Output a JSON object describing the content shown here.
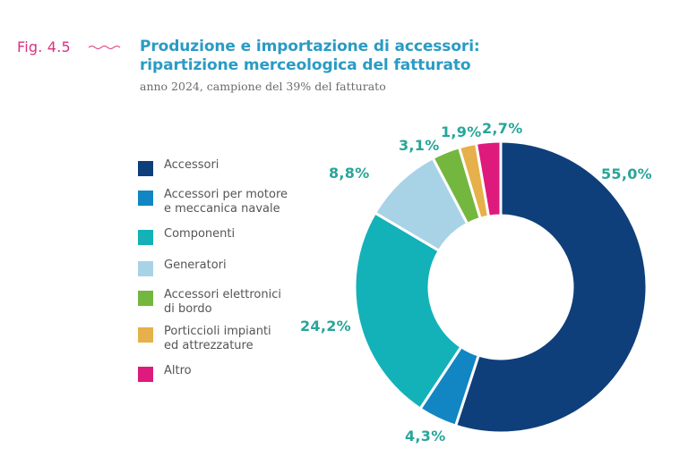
{
  "figure": {
    "number": "Fig. 4.5",
    "title_line1": "Produzione e importazione di accessori:",
    "title_line2": "ripartizione merceologica del fatturato",
    "subtitle": "anno 2024, campione del 39% del fatturato"
  },
  "legend": [
    {
      "label": "Accessori",
      "color": "#0f3f7a"
    },
    {
      "label": "Accessori per motore\ne meccanica navale",
      "color": "#1286c2"
    },
    {
      "label": "Componenti",
      "color": "#12b2b8"
    },
    {
      "label": "Generatori",
      "color": "#a8d3e6"
    },
    {
      "label": "Accessori elettronici\ndi bordo",
      "color": "#74b73f"
    },
    {
      "label": "Porticcioli impianti\ned attrezzature",
      "color": "#e6b04a"
    },
    {
      "label": "Altro",
      "color": "#de1a7c"
    }
  ],
  "labels": {
    "accessori": "55,0%",
    "motore": "4,3%",
    "componenti": "24,2%",
    "generatori": "8,8%",
    "elettronici": "3,1%",
    "porticcioli": "1,9%",
    "altro": "2,7%"
  },
  "colors": {
    "label_text": "#28a59a",
    "fig_number": "#d6337f",
    "title": "#2a9bc4"
  },
  "chart_data": {
    "type": "pie",
    "subtype": "donut",
    "title": "Produzione e importazione di accessori: ripartizione merceologica del fatturato",
    "subtitle": "anno 2024, campione del 39% del fatturato",
    "categories": [
      "Accessori",
      "Accessori per motore e meccanica navale",
      "Componenti",
      "Generatori",
      "Accessori elettronici di bordo",
      "Porticcioli impianti ed attrezzature",
      "Altro"
    ],
    "values": [
      55.0,
      4.3,
      24.2,
      8.8,
      3.1,
      1.9,
      2.7
    ],
    "unit": "%",
    "colors": [
      "#0f3f7a",
      "#1286c2",
      "#12b2b8",
      "#a8d3e6",
      "#74b73f",
      "#e6b04a",
      "#de1a7c"
    ],
    "start_angle": "12 o'clock",
    "direction": "clockwise",
    "legend_position": "left"
  }
}
